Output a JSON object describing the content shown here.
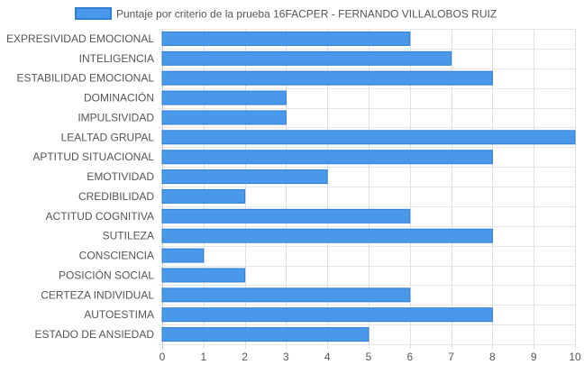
{
  "chart_data": {
    "type": "bar",
    "orientation": "horizontal",
    "categories": [
      "EXPRESIVIDAD EMOCIONAL",
      "INTELIGENCIA",
      "ESTABILIDAD EMOCIONAL",
      "DOMINACIÓN",
      "IMPULSIVIDAD",
      "LEALTAD GRUPAL",
      "APTITUD SITUACIONAL",
      "EMOTIVIDAD",
      "CREDIBILIDAD",
      "ACTITUD COGNITIVA",
      "SUTILEZA",
      "CONSCIENCIA",
      "POSICIÓN SOCIAL",
      "CERTEZA INDIVIDUAL",
      "AUTOESTIMA",
      "ESTADO DE ANSIEDAD"
    ],
    "series": [
      {
        "name": "Puntaje por criterio de la prueba 16FACPER - FERNANDO VILLALOBOS RUIZ",
        "values": [
          6,
          7,
          8,
          3,
          3,
          10,
          8,
          4,
          2,
          6,
          8,
          1,
          2,
          6,
          8,
          5
        ],
        "color": "#4a98ea",
        "border_color": "#2f7fd6"
      }
    ],
    "xlim": [
      0,
      10
    ],
    "x_ticks": [
      0,
      1,
      2,
      3,
      4,
      5,
      6,
      7,
      8,
      9,
      10
    ],
    "grid": true,
    "legend": "top-center",
    "title": "",
    "xlabel": "",
    "ylabel": ""
  }
}
